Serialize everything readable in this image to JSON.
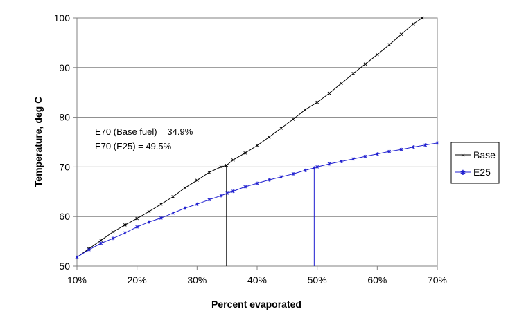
{
  "chart_data": {
    "type": "line",
    "title": "",
    "xlabel": "Percent evaporated",
    "ylabel": "Temperature, deg C",
    "xlim": [
      10,
      70
    ],
    "ylim": [
      50,
      100
    ],
    "x_ticks": [
      10,
      20,
      30,
      40,
      50,
      60,
      70
    ],
    "x_tick_labels": [
      "10%",
      "20%",
      "30%",
      "40%",
      "50%",
      "60%",
      "70%"
    ],
    "y_ticks": [
      50,
      60,
      70,
      80,
      90,
      100
    ],
    "y_tick_labels": [
      "50",
      "60",
      "70",
      "80",
      "90",
      "100"
    ],
    "grid": "horizontal",
    "legend_position": "right",
    "series": [
      {
        "name": "Base",
        "color": "#000000",
        "marker": "x",
        "x": [
          10,
          12,
          14,
          16,
          18,
          20,
          22,
          24,
          26,
          28,
          30,
          32,
          34,
          34.9,
          36,
          38,
          40,
          42,
          44,
          46,
          48,
          50,
          52,
          54,
          56,
          58,
          60,
          62,
          64,
          66,
          67.5
        ],
        "y": [
          51.8,
          53.5,
          55.2,
          56.9,
          58.3,
          59.6,
          61.0,
          62.5,
          64.0,
          65.8,
          67.3,
          68.9,
          70.0,
          70.3,
          71.4,
          72.8,
          74.3,
          76.0,
          77.8,
          79.6,
          81.5,
          83.0,
          84.8,
          86.8,
          88.8,
          90.7,
          92.6,
          94.6,
          96.7,
          98.8,
          100.0
        ]
      },
      {
        "name": "E25",
        "color": "#1f1fd0",
        "marker": "star",
        "x": [
          10,
          12,
          14,
          16,
          18,
          20,
          22,
          24,
          26,
          28,
          30,
          32,
          34,
          35,
          36,
          38,
          40,
          42,
          44,
          46,
          48,
          49.5,
          50,
          52,
          54,
          56,
          58,
          60,
          62,
          64,
          66,
          68,
          70
        ],
        "y": [
          51.8,
          53.3,
          54.6,
          55.6,
          56.7,
          57.9,
          58.9,
          59.7,
          60.7,
          61.7,
          62.5,
          63.4,
          64.2,
          64.7,
          65.1,
          66.0,
          66.7,
          67.4,
          68.0,
          68.6,
          69.3,
          69.8,
          70.0,
          70.6,
          71.1,
          71.6,
          72.1,
          72.6,
          73.1,
          73.5,
          74.0,
          74.4,
          74.8
        ]
      }
    ],
    "reference_lines": [
      {
        "series": "Base",
        "x": 34.9,
        "color": "#000000"
      },
      {
        "series": "E25",
        "x": 49.5,
        "color": "#1f1fd0"
      }
    ],
    "annotations": [
      "E70 (Base fuel) = 34.9%",
      "E70 (E25) = 49.5%"
    ]
  }
}
